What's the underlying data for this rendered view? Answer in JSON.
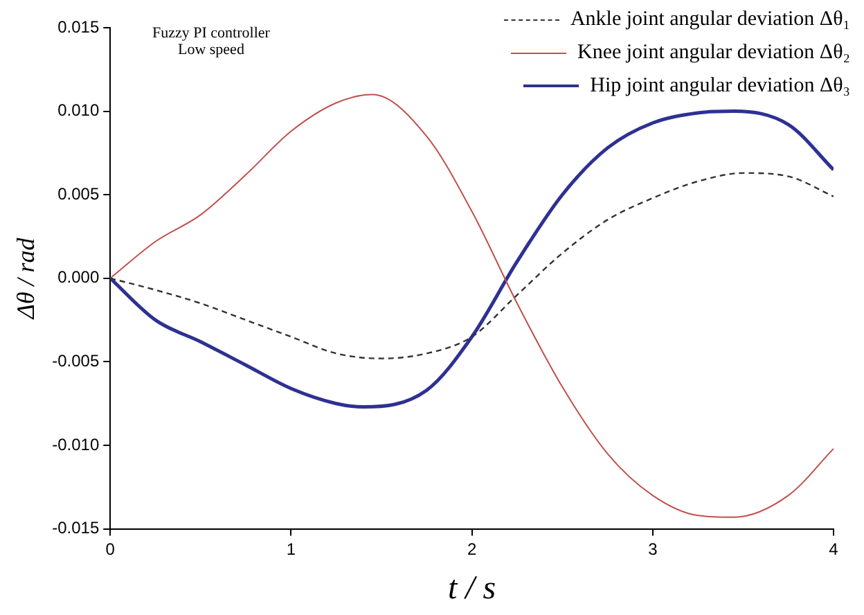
{
  "chart_data": {
    "type": "line",
    "xlabel": "t / s",
    "ylabel": "Δθ / rad",
    "annotations": [
      "Fuzzy PI controller",
      "Low speed"
    ],
    "xlim": [
      0,
      4
    ],
    "xticks": [
      0,
      1,
      2,
      3,
      4
    ],
    "ylim": [
      -0.015,
      0.015
    ],
    "yticks": [
      {
        "value": -0.015,
        "label": "-0.015"
      },
      {
        "value": -0.01,
        "label": "-0.010"
      },
      {
        "value": -0.005,
        "label": "-0.005"
      },
      {
        "value": 0,
        "label": "0.000"
      },
      {
        "value": 0.005,
        "label": "0.005"
      },
      {
        "value": 0.01,
        "label": "0.010"
      },
      {
        "value": 0.015,
        "label": "0.015"
      }
    ],
    "grid": false,
    "legend": "top right",
    "marker": "none",
    "series": [
      {
        "name": "Ankle joint angular deviation Δθ₁",
        "color": "#333333",
        "line_style": "dashed",
        "x": [
          0,
          0.25,
          0.5,
          0.75,
          1,
          1.25,
          1.5,
          1.75,
          2,
          2.25,
          2.5,
          2.75,
          3,
          3.25,
          3.5,
          3.75,
          4
        ],
        "values": [
          0,
          -0.0007,
          -0.0015,
          -0.0025,
          -0.0035,
          -0.0045,
          -0.0048,
          -0.0045,
          -0.0035,
          -0.001,
          0.0015,
          0.0035,
          0.0048,
          0.0058,
          0.0063,
          0.0061,
          0.0049
        ]
      },
      {
        "name": "Knee joint angular deviation Δθ₂",
        "color": "#c0504d",
        "line_style": "solid",
        "x": [
          0,
          0.25,
          0.5,
          0.75,
          1,
          1.25,
          1.45,
          1.75,
          2,
          2.25,
          2.5,
          2.75,
          3,
          3.25,
          3.45,
          3.75,
          4
        ],
        "values": [
          0,
          0.0022,
          0.0038,
          0.0062,
          0.0088,
          0.0105,
          0.011,
          0.0085,
          0.004,
          -0.0015,
          -0.0065,
          -0.0105,
          -0.013,
          -0.0142,
          -0.0143,
          -0.013,
          -0.0102
        ]
      },
      {
        "name": "Hip joint angular deviation Δθ₃",
        "color": "#2e3192",
        "line_style": "solid",
        "x": [
          0,
          0.25,
          0.5,
          0.75,
          1,
          1.25,
          1.4,
          1.75,
          2,
          2.25,
          2.5,
          2.75,
          3,
          3.25,
          3.45,
          3.75,
          4
        ],
        "values": [
          0,
          -0.0025,
          -0.0038,
          -0.0052,
          -0.0066,
          -0.0075,
          -0.0077,
          -0.0067,
          -0.0035,
          0.001,
          0.005,
          0.0078,
          0.0093,
          0.0099,
          0.01,
          0.0092,
          0.0065
        ]
      }
    ]
  }
}
